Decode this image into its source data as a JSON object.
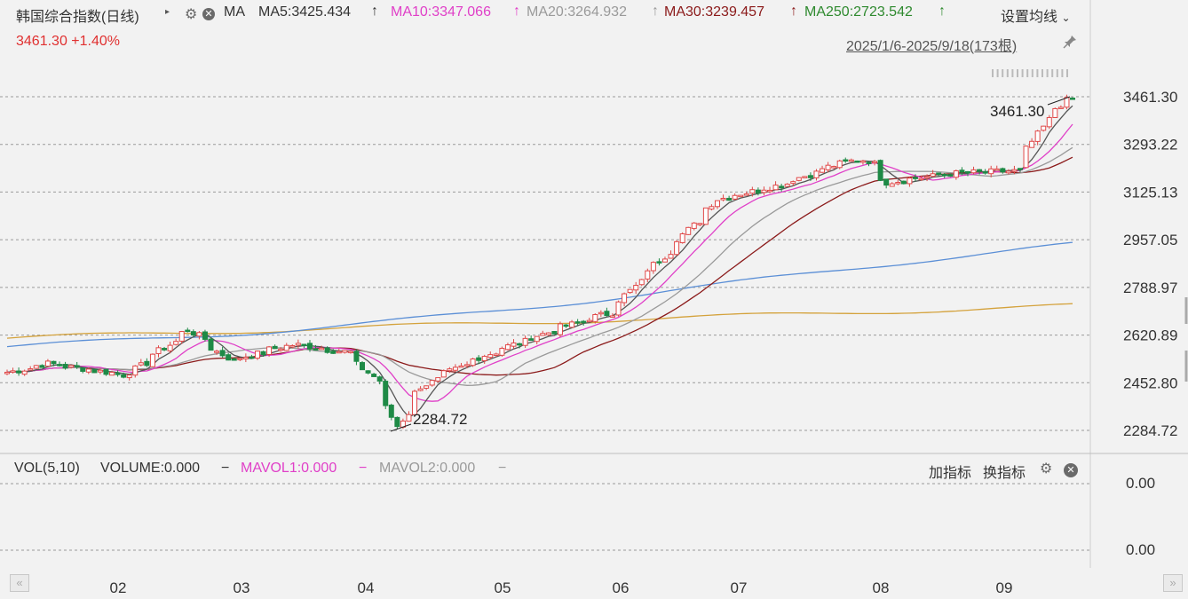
{
  "header": {
    "title": "韩国综合指数(日线)",
    "ma_label": "MA",
    "ma5": "MA5:3425.434",
    "ma10": "MA10:3347.066",
    "ma20": "MA20:3264.932",
    "ma30": "MA30:3239.457",
    "ma250": "MA250:2723.542",
    "settings_label": "设置均线",
    "price_now": "3461.30  +1.40%",
    "date_range": "2025/1/6-2025/9/18(173根)"
  },
  "volume_panel": {
    "vol_label": "VOL(5,10)",
    "volume": "VOLUME:0.000",
    "mavol1": "MAVOL1:0.000",
    "mavol2": "MAVOL2:0.000",
    "add_indicator": "加指标",
    "switch_indicator": "换指标",
    "axis_top": "0.00",
    "axis_bottom": "0.00"
  },
  "colors": {
    "up": "#e04848",
    "down": "#1e8a46",
    "ma5": "#555555",
    "ma10": "#e040c8",
    "ma20": "#9a9a9a",
    "ma30": "#8b1a1a",
    "ma60": "#5b8fd6",
    "ma250": "#d4a23c"
  },
  "icons": [
    "play-triangle-icon",
    "gear-icon",
    "close-icon",
    "chevron-down-icon",
    "pin-icon",
    "scroll-left-icon",
    "scroll-right-icon"
  ],
  "chart_data": {
    "type": "candlestick",
    "y_ticks": [
      "3461.30",
      "3293.22",
      "3125.13",
      "2957.05",
      "2788.97",
      "2620.89",
      "2452.80",
      "2284.72"
    ],
    "x_ticks": [
      "02",
      "03",
      "04",
      "05",
      "06",
      "07",
      "08",
      "09"
    ],
    "ylim": [
      2284.72,
      3461.3
    ],
    "max_label": "3461.30",
    "min_label": "2284.72",
    "close_anchors": [
      {
        "date": "2025-01-06",
        "close": 2490
      },
      {
        "date": "2025-01-15",
        "close": 2520
      },
      {
        "date": "2025-02-03",
        "close": 2480
      },
      {
        "date": "2025-02-18",
        "close": 2640
      },
      {
        "date": "2025-02-28",
        "close": 2530
      },
      {
        "date": "2025-03-15",
        "close": 2590
      },
      {
        "date": "2025-03-28",
        "close": 2560
      },
      {
        "date": "2025-04-04",
        "close": 2460
      },
      {
        "date": "2025-04-09",
        "close": 2300
      },
      {
        "date": "2025-04-15",
        "close": 2440
      },
      {
        "date": "2025-04-30",
        "close": 2550
      },
      {
        "date": "2025-05-15",
        "close": 2630
      },
      {
        "date": "2025-05-30",
        "close": 2700
      },
      {
        "date": "2025-06-12",
        "close": 2900
      },
      {
        "date": "2025-06-25",
        "close": 3100
      },
      {
        "date": "2025-07-10",
        "close": 3150
      },
      {
        "date": "2025-07-25",
        "close": 3230
      },
      {
        "date": "2025-07-31",
        "close": 3240
      },
      {
        "date": "2025-08-05",
        "close": 3160
      },
      {
        "date": "2025-08-20",
        "close": 3190
      },
      {
        "date": "2025-09-05",
        "close": 3200
      },
      {
        "date": "2025-09-12",
        "close": 3380
      },
      {
        "date": "2025-09-18",
        "close": 3461.3
      }
    ],
    "ma250_start": 2610,
    "ma250_end": 2723.542,
    "ma60_start": 2580,
    "ma60_end": 2910
  }
}
